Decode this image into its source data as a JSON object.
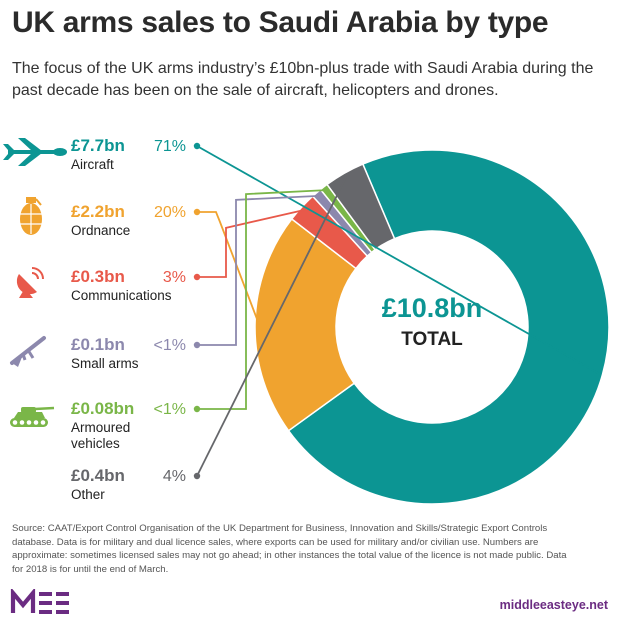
{
  "header": {
    "title": "UK arms sales to Saudi Arabia by type",
    "subtitle": "The focus of the UK arms industry’s £10bn-plus trade with Saudi Arabia during the past decade has been on the sale of aircraft, helicopters and drones."
  },
  "chart_data": {
    "type": "pie",
    "donut": true,
    "title": "UK arms sales to Saudi Arabia by type",
    "center_value": "£10.8bn",
    "center_label": "TOTAL",
    "total_bn": 10.8,
    "legend_position": "left",
    "slices": [
      {
        "category": "Aircraft",
        "value_label": "£7.7bn",
        "value_bn": 7.7,
        "pct_label": "71%",
        "color": "#0c9593",
        "icon": "aircraft-drone-icon",
        "key": "aircraft"
      },
      {
        "category": "Ordnance",
        "value_label": "£2.2bn",
        "value_bn": 2.2,
        "pct_label": "20%",
        "color": "#f0a32f",
        "icon": "grenade-icon",
        "key": "ordnance"
      },
      {
        "category": "Communications",
        "value_label": "£0.3bn",
        "value_bn": 0.3,
        "pct_label": "3%",
        "color": "#e8594a",
        "icon": "satellite-dish-icon",
        "key": "communications"
      },
      {
        "category": "Small arms",
        "value_label": "£0.1bn",
        "value_bn": 0.1,
        "pct_label": "<1%",
        "color": "#8c88ad",
        "icon": "rifle-icon",
        "key": "small-arms"
      },
      {
        "category": "Armoured vehicles",
        "value_label": "£0.08bn",
        "value_bn": 0.08,
        "pct_label": "<1%",
        "color": "#7ab648",
        "icon": "tank-icon",
        "key": "armoured-vehicles"
      },
      {
        "category": "Other",
        "value_label": "£0.4bn",
        "value_bn": 0.4,
        "pct_label": "4%",
        "color": "#66676b",
        "icon": "",
        "key": "other"
      }
    ]
  },
  "footer": {
    "source": "Source: CAAT/Export Control Organisation of the UK Department for Business, Innovation and Skills/Strategic Export Controls database. Data is for military and dual licence sales, where exports can be used for military and/or civilian use. Numbers are approximate: sometimes licensed sales may not go ahead; in other instances the total value of the licence is not made public. Data for 2018 is for until the end of March.",
    "logo_text": "MEE",
    "site": "middleeasteye.net"
  },
  "colors": {
    "title": "#2b2b2b",
    "brand": "#6b2c82"
  }
}
